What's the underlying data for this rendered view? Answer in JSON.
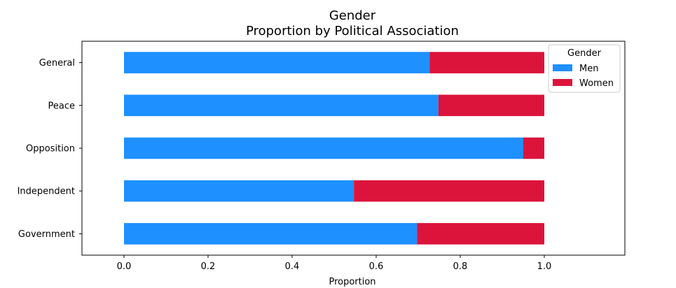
{
  "chart_data": {
    "type": "bar",
    "orientation": "horizontal",
    "stacked": true,
    "title": "Gender",
    "subtitle": "Proportion by Political Association",
    "xlabel": "Proportion",
    "ylabel": "",
    "xlim": [
      -0.1,
      1.19
    ],
    "xticks": [
      "0.0",
      "0.2",
      "0.4",
      "0.6",
      "0.8",
      "1.0"
    ],
    "categories": [
      "General",
      "Peace",
      "Opposition",
      "Independent",
      "Government"
    ],
    "series": [
      {
        "name": "Men",
        "color": "#1e90ff",
        "values": [
          0.727,
          0.748,
          0.95,
          0.547,
          0.697
        ]
      },
      {
        "name": "Women",
        "color": "#dc143c",
        "values": [
          0.273,
          0.252,
          0.05,
          0.453,
          0.303
        ]
      }
    ],
    "legend": {
      "title": "Gender",
      "placement": "top-right"
    },
    "grid": false
  }
}
